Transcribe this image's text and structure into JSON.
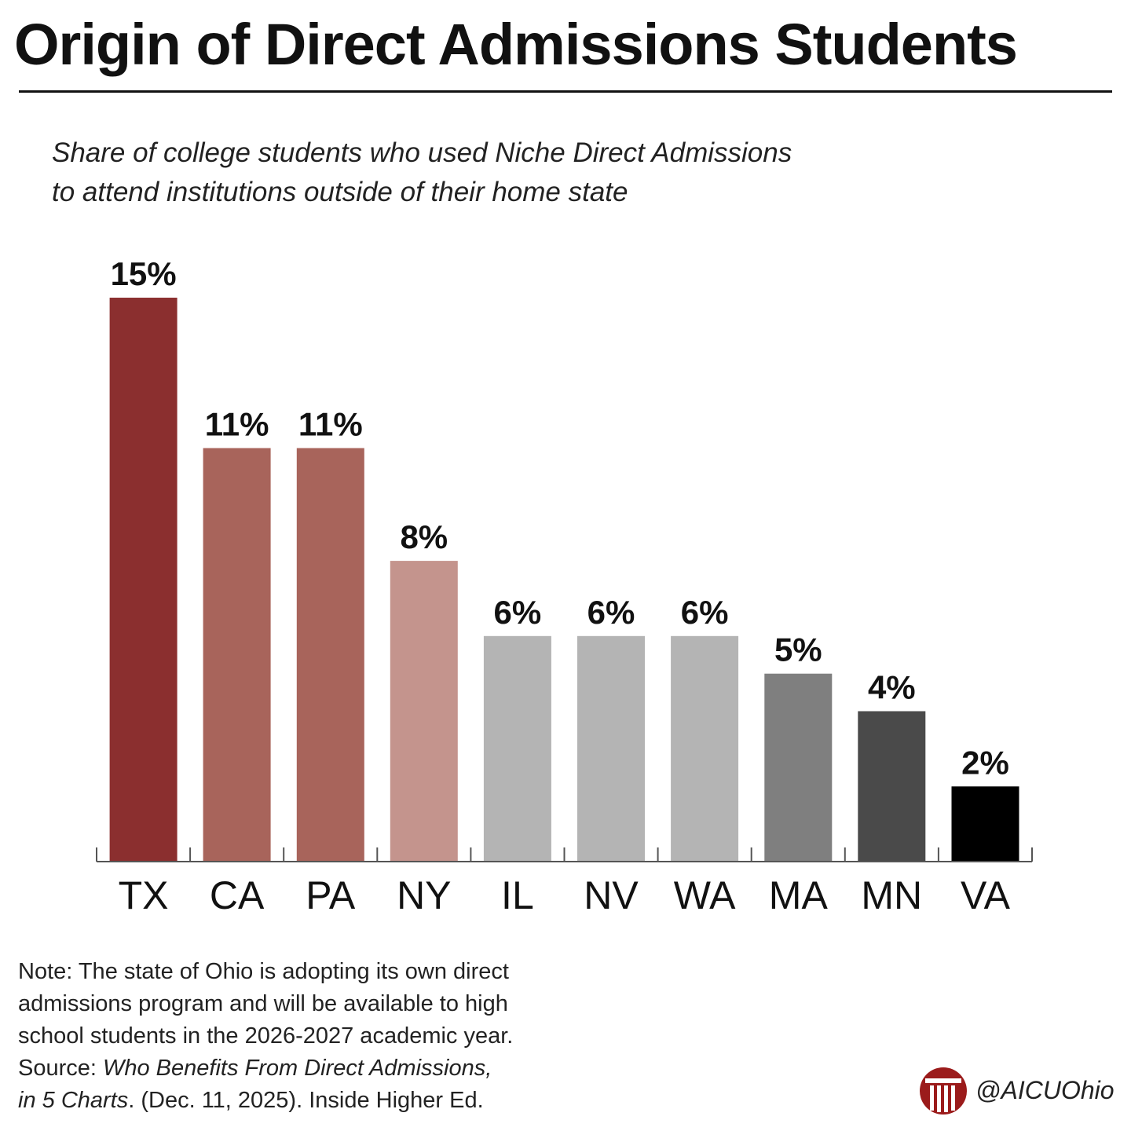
{
  "header": {
    "title": "Origin of Direct Admissions Students"
  },
  "subtitle": {
    "line1": "Share of college students who used Niche Direct Admissions",
    "line2": "to attend institutions outside of their home state"
  },
  "chart_data": {
    "type": "bar",
    "categories": [
      "TX",
      "CA",
      "PA",
      "NY",
      "IL",
      "NV",
      "WA",
      "MA",
      "MN",
      "VA"
    ],
    "values": [
      15,
      11,
      11,
      8,
      6,
      6,
      6,
      5,
      4,
      2
    ],
    "data_labels": [
      "15%",
      "11%",
      "11%",
      "8%",
      "6%",
      "6%",
      "6%",
      "5%",
      "4%",
      "2%"
    ],
    "bar_colors": [
      "#8b2f2f",
      "#a8645b",
      "#a8645b",
      "#c4948d",
      "#b4b4b4",
      "#b4b4b4",
      "#b4b4b4",
      "#7f7f7f",
      "#4a4a4a",
      "#000000"
    ],
    "unit": "%",
    "ylim": [
      0,
      15
    ],
    "grid": false,
    "legend": "none"
  },
  "note": {
    "line1": "Note: The state of Ohio is adopting its own direct",
    "line2": "admissions program and will be available to high",
    "line3": "school students in the 2026-2027 academic year.",
    "source_prefix": "Source: ",
    "source_title_part1": "Who Benefits From Direct Admissions,",
    "source_title_part2": "in 5 Charts",
    "source_suffix": ". (Dec. 11, 2025). Inside Higher Ed."
  },
  "branding": {
    "handle": "@AICUOhio",
    "logo_color": "#9b1b1b",
    "logo_icon": "column-logo-icon"
  }
}
